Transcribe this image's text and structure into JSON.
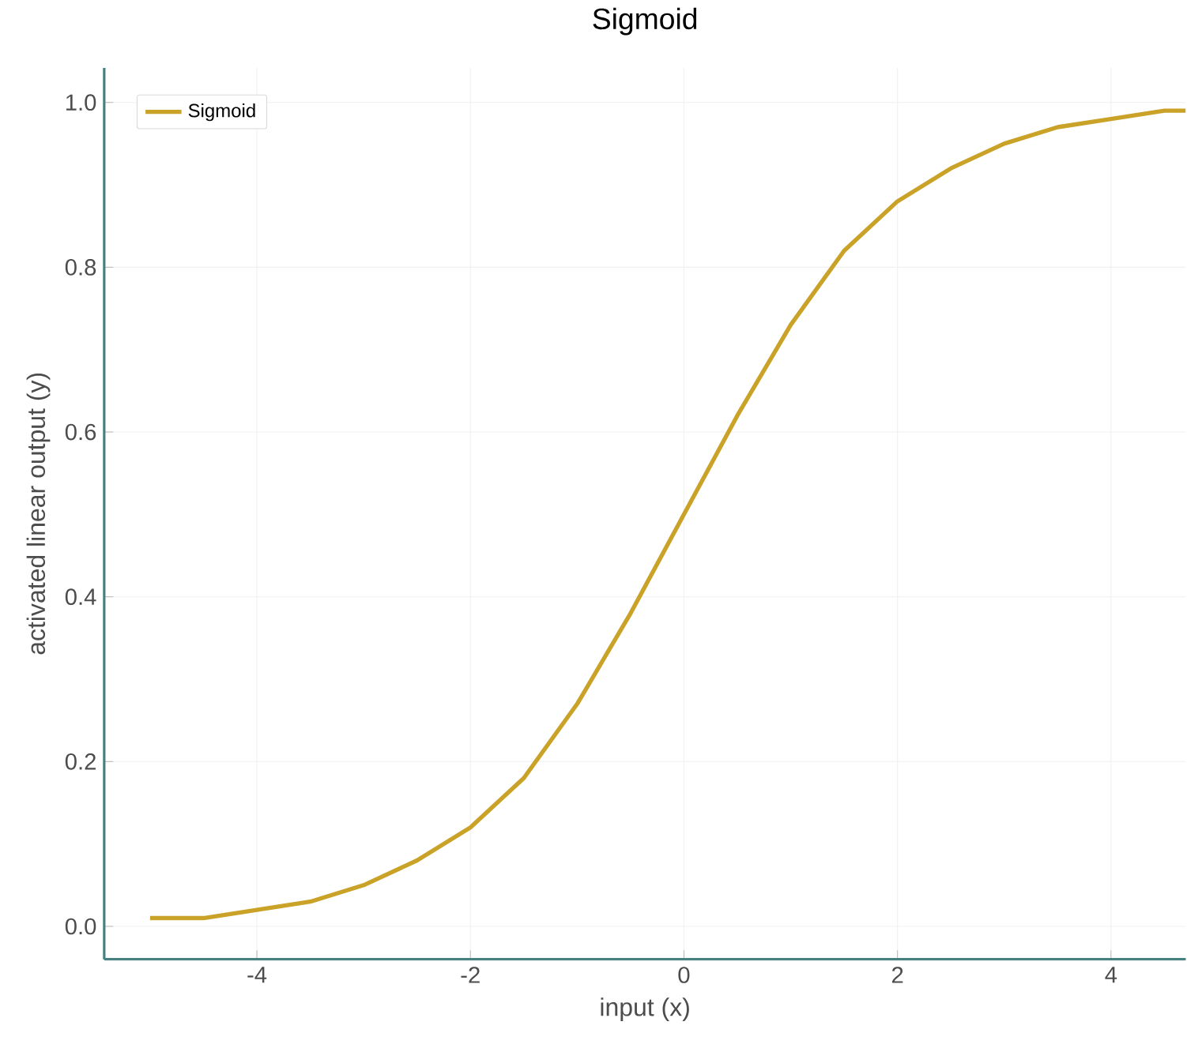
{
  "chart_data": {
    "type": "line",
    "title": "Sigmoid",
    "xlabel": "input (x)",
    "ylabel": "activated linear output (y)",
    "xlim": [
      -5.43,
      4.7
    ],
    "ylim": [
      -0.04,
      1.042
    ],
    "xticks": [
      -4,
      -2,
      0,
      2,
      4
    ],
    "yticks": [
      {
        "value": 0,
        "label": "0.0"
      },
      {
        "value": 0.2,
        "label": "0.2"
      },
      {
        "value": 0.4,
        "label": "0.4"
      },
      {
        "value": 0.6,
        "label": "0.6"
      },
      {
        "value": 0.8,
        "label": "0.8"
      },
      {
        "value": 1,
        "label": "1.0"
      }
    ],
    "grid": true,
    "legend": "top left",
    "line_style": "solid",
    "series": [
      {
        "name": "Sigmoid",
        "color": "#c9a227",
        "x": [
          -5,
          -4.5,
          -4,
          -3.5,
          -3,
          -2.5,
          -2,
          -1.5,
          -1,
          -0.5,
          0,
          0.5,
          1,
          1.5,
          2,
          2.5,
          3,
          3.5,
          4,
          4.5,
          4.7
        ],
        "values": [
          0.01,
          0.01,
          0.02,
          0.03,
          0.05,
          0.08,
          0.12,
          0.18,
          0.27,
          0.38,
          0.5,
          0.62,
          0.73,
          0.82,
          0.88,
          0.92,
          0.95,
          0.97,
          0.98,
          0.99,
          0.99
        ]
      }
    ]
  }
}
